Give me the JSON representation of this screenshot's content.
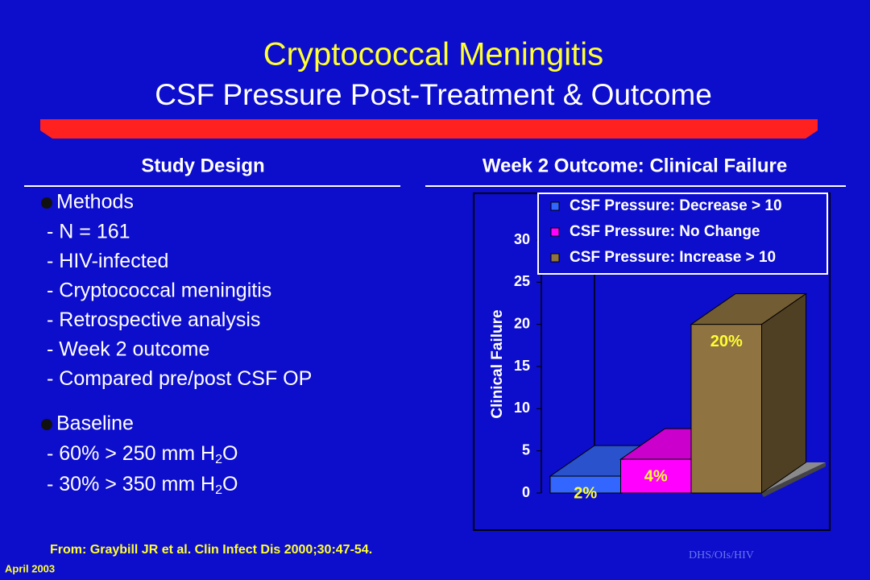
{
  "header": {
    "title": "Cryptococcal Meningitis",
    "subtitle": "CSF Pressure Post-Treatment & Outcome"
  },
  "left": {
    "heading": "Study Design",
    "methods": {
      "label": "Methods",
      "items": [
        "- N = 161",
        "- HIV-infected",
        "- Cryptococcal meningitis",
        "- Retrospective analysis",
        "- Week 2 outcome",
        "- Compared pre/post CSF OP"
      ]
    },
    "baseline": {
      "label": "Baseline",
      "items": [
        [
          "- 60% > 250 mm H",
          "2",
          "O"
        ],
        [
          "- 30% > 350 mm H",
          "2",
          "O"
        ]
      ]
    }
  },
  "right": {
    "heading": "Week 2 Outcome: Clinical Failure"
  },
  "chart_data": {
    "type": "bar3d",
    "y_label": "Clinical Failure",
    "ylim": [
      0,
      30
    ],
    "yticks": [
      0,
      5,
      10,
      15,
      20,
      25,
      30
    ],
    "series": [
      {
        "name": "CSF Pressure: Decrease > 10",
        "color": "#3366ff",
        "values": [
          2
        ],
        "value_labels": [
          "2%"
        ]
      },
      {
        "name": "CSF Pressure: No Change",
        "color": "#ff00ff",
        "values": [
          4
        ],
        "value_labels": [
          "4%"
        ]
      },
      {
        "name": "CSF Pressure: Increase > 10",
        "color": "#8f7340",
        "values": [
          20
        ],
        "value_labels": [
          "20%"
        ]
      }
    ]
  },
  "footer": {
    "source": "From: Graybill JR et al.  Clin Infect Dis 2000;30:47-54.",
    "date": "April 2003",
    "tag": "DHS/OIs/HIV"
  }
}
